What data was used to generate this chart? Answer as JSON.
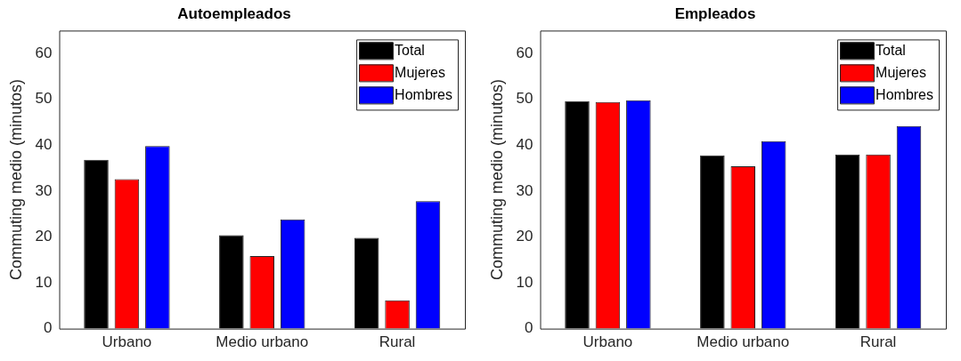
{
  "chart_data": [
    {
      "type": "bar",
      "title": "Autoempleados",
      "ylabel": "Commuting medio (minutos)",
      "categories": [
        "Urbano",
        "Medio urbano",
        "Rural"
      ],
      "series": [
        {
          "name": "Total",
          "color": "#000000",
          "values": [
            36.8,
            20.4,
            19.8
          ]
        },
        {
          "name": "Mujeres",
          "color": "#ff0000",
          "values": [
            32.6,
            15.8,
            6.2
          ]
        },
        {
          "name": "Hombres",
          "color": "#0000ff",
          "values": [
            39.8,
            23.8,
            27.8
          ]
        }
      ],
      "ylim": [
        0,
        65
      ],
      "yticks": [
        0,
        10,
        20,
        30,
        40,
        50,
        60
      ],
      "grid": false,
      "legend": "top right"
    },
    {
      "type": "bar",
      "title": "Empleados",
      "ylabel": "Commuting medio (minutos)",
      "categories": [
        "Urbano",
        "Medio urbano",
        "Rural"
      ],
      "series": [
        {
          "name": "Total",
          "color": "#000000",
          "values": [
            49.6,
            37.8,
            38.0
          ]
        },
        {
          "name": "Mujeres",
          "color": "#ff0000",
          "values": [
            49.4,
            35.4,
            38.0
          ]
        },
        {
          "name": "Hombres",
          "color": "#0000ff",
          "values": [
            49.8,
            40.9,
            44.2
          ]
        }
      ],
      "ylim": [
        0,
        65
      ],
      "yticks": [
        0,
        10,
        20,
        30,
        40,
        50,
        60
      ],
      "grid": false,
      "legend": "top right"
    }
  ]
}
